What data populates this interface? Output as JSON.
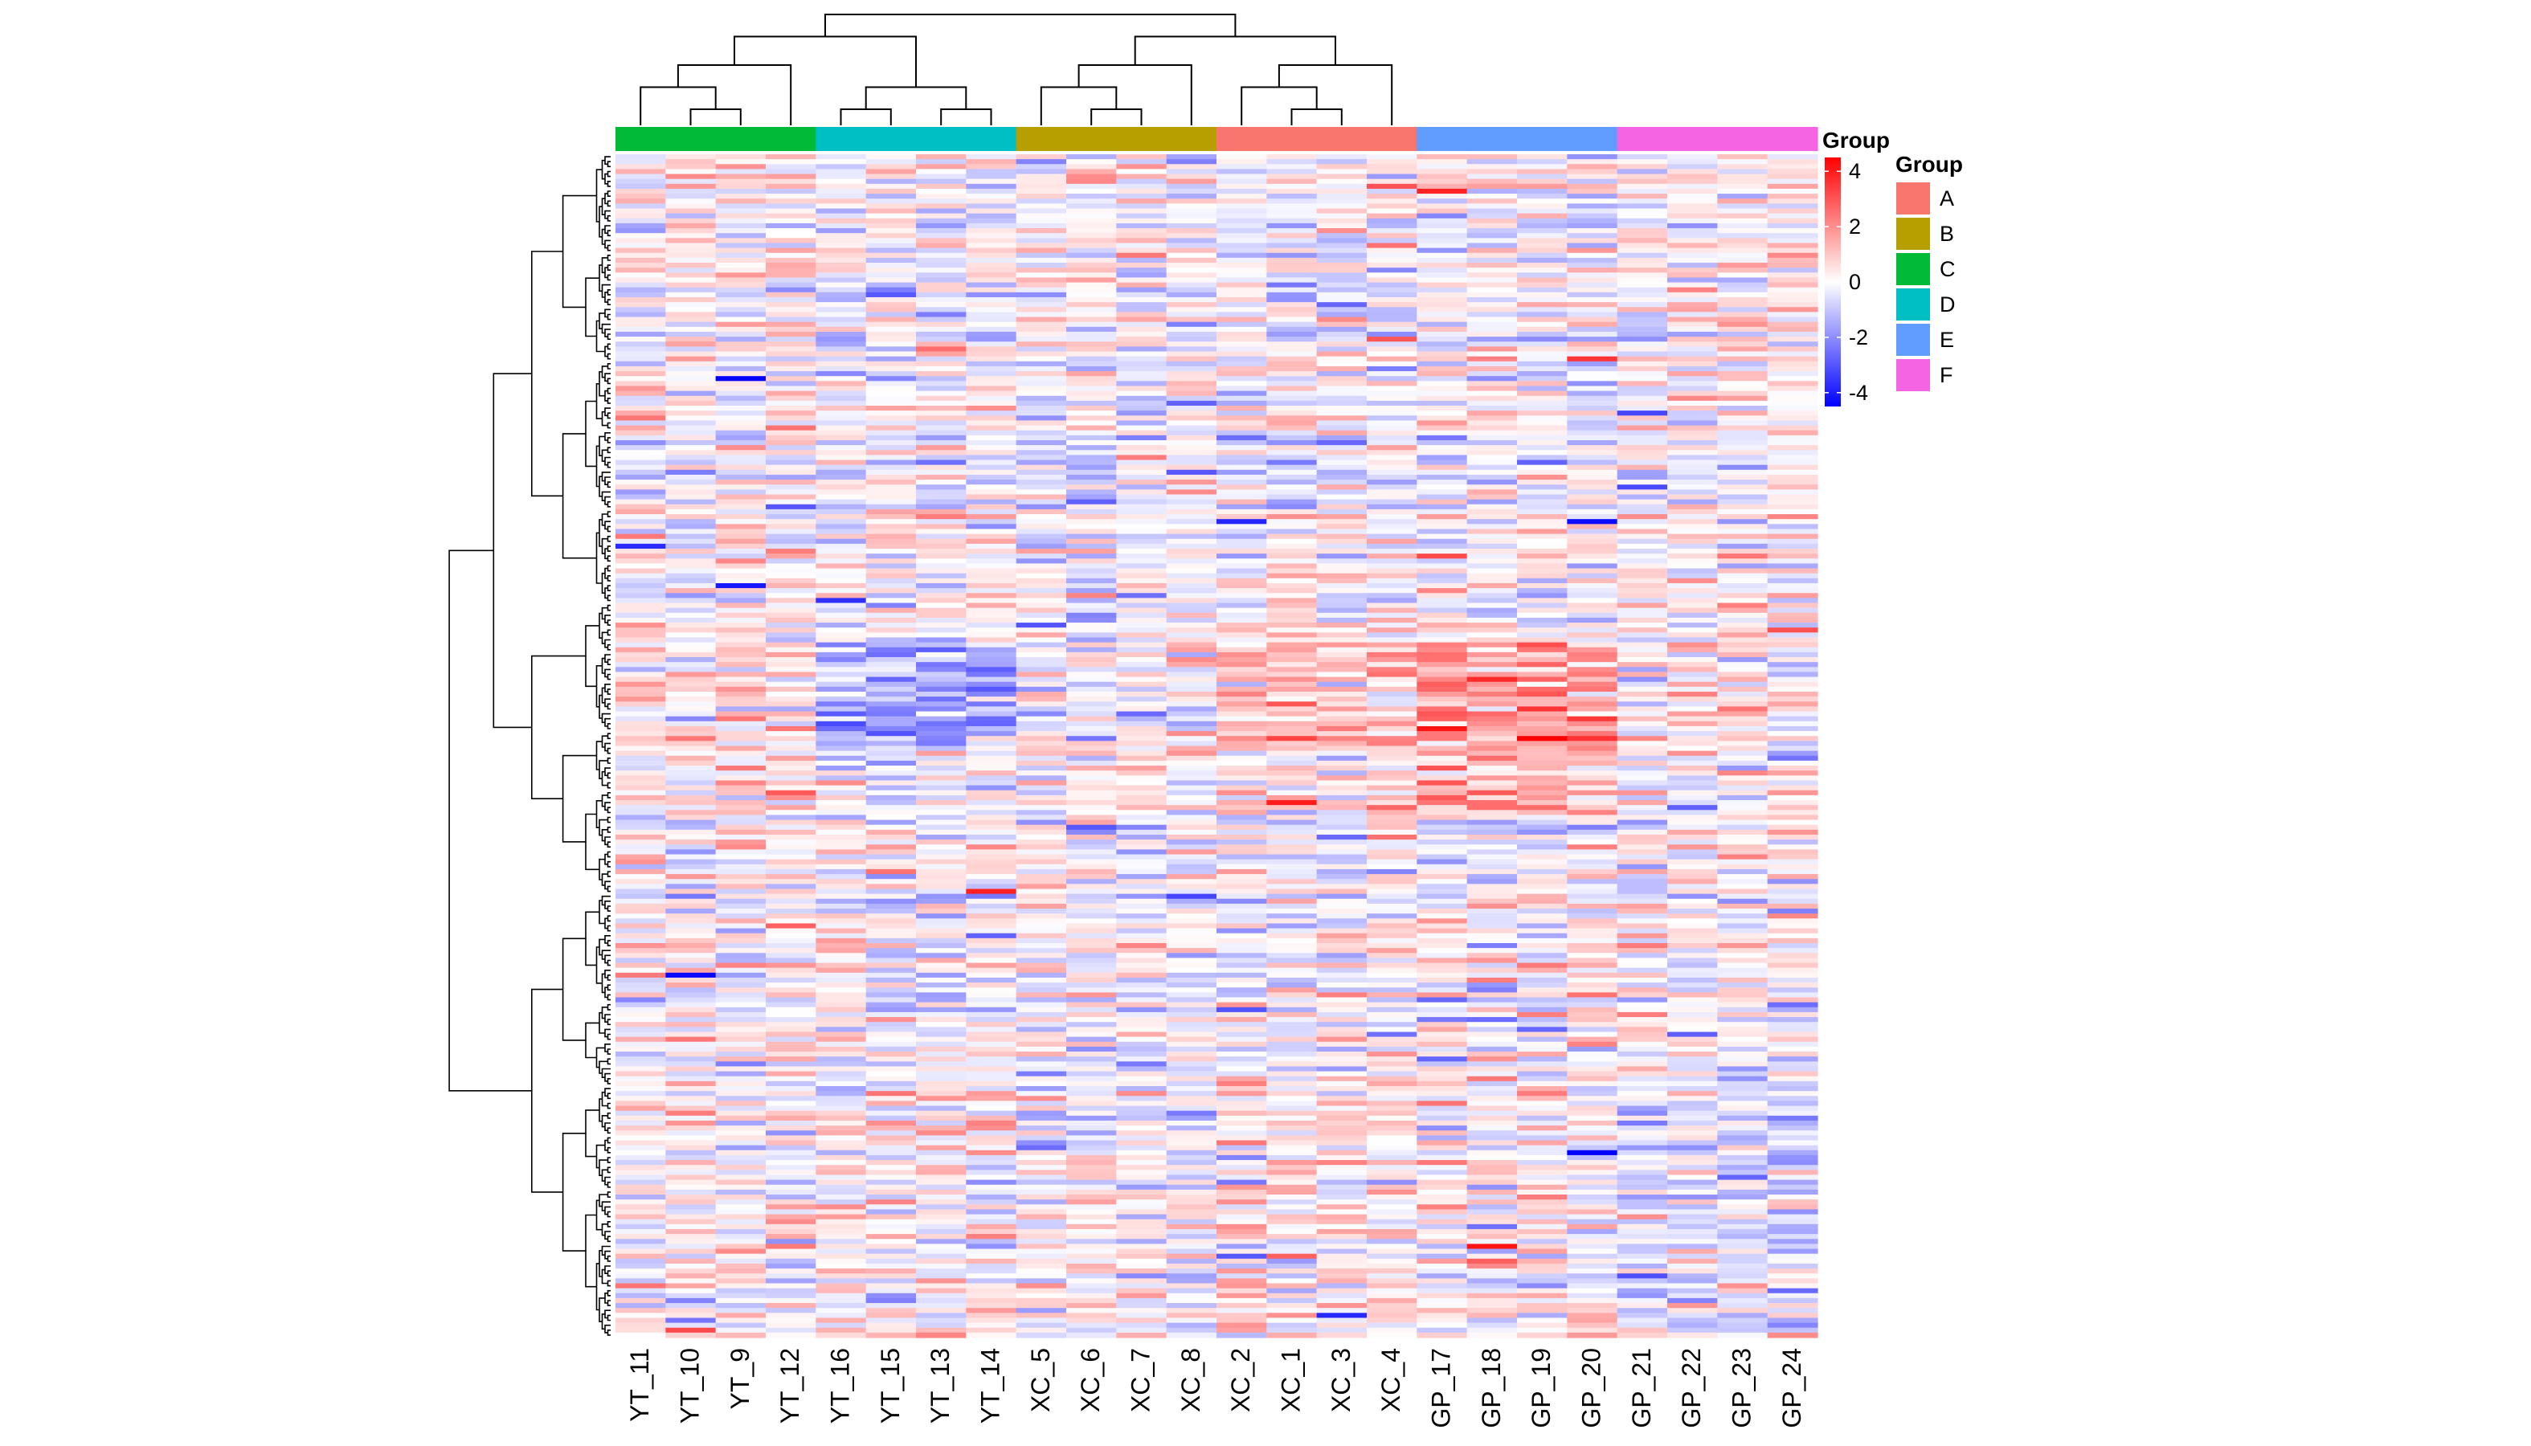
{
  "chart_data": {
    "type": "heatmap",
    "columns": [
      "YT_11",
      "YT_10",
      "YT_9",
      "YT_12",
      "YT_16",
      "YT_15",
      "YT_13",
      "YT_14",
      "XC_5",
      "XC_6",
      "XC_7",
      "XC_8",
      "XC_2",
      "XC_1",
      "XC_3",
      "XC_4",
      "GP_17",
      "GP_18",
      "GP_19",
      "GP_20",
      "GP_21",
      "GP_22",
      "GP_23",
      "GP_24"
    ],
    "column_groups": [
      "C",
      "C",
      "C",
      "C",
      "D",
      "D",
      "D",
      "D",
      "B",
      "B",
      "B",
      "B",
      "A",
      "A",
      "A",
      "A",
      "E",
      "E",
      "E",
      "E",
      "F",
      "F",
      "F",
      "F"
    ],
    "row_count": 240,
    "value_range": [
      -4.5,
      4.5
    ],
    "colorbar": {
      "title": "Group",
      "ticks": [
        4,
        2,
        0,
        -2,
        -4
      ],
      "colors": {
        "low": "#0000ff",
        "mid": "#ffffff",
        "high": "#ff0000"
      }
    },
    "group_legend": {
      "title": "Group",
      "items": [
        {
          "label": "A",
          "color": "#f8766d"
        },
        {
          "label": "B",
          "color": "#b79f00"
        },
        {
          "label": "C",
          "color": "#00ba38"
        },
        {
          "label": "D",
          "color": "#00bfc4"
        },
        {
          "label": "E",
          "color": "#619cff"
        },
        {
          "label": "F",
          "color": "#f564e3"
        }
      ]
    },
    "column_dendrogram": true,
    "row_dendrogram": true,
    "annotation_bar": true
  }
}
